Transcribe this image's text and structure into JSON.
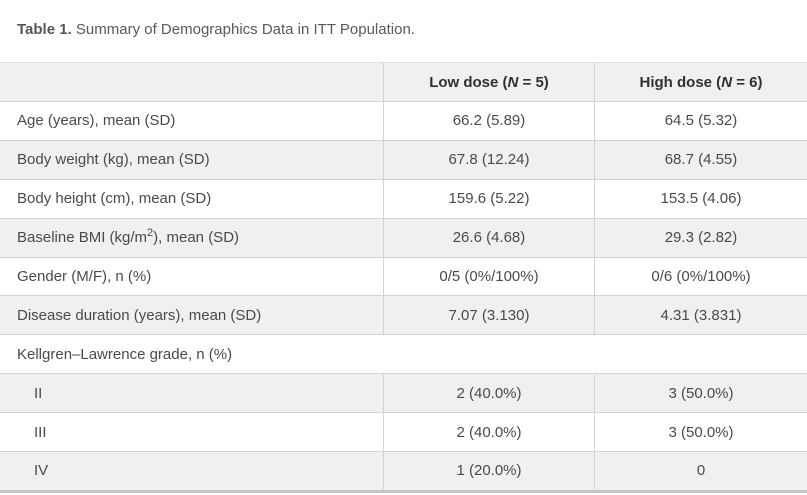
{
  "caption": {
    "label": "Table 1.",
    "text": " Summary of Demographics Data in ITT Population."
  },
  "table": {
    "header": {
      "empty": "",
      "low": {
        "pre": "Low dose (",
        "n": "N",
        "post": " = 5)"
      },
      "high": {
        "pre": "High dose (",
        "n": "N",
        "post": " = 6)"
      }
    },
    "rows": [
      {
        "label_pre": "Age (years), mean (SD)",
        "label_sup": "",
        "label_post": "",
        "low": "66.2 (5.89)",
        "high": "64.5 (5.32)"
      },
      {
        "label_pre": "Body weight (kg), mean (SD)",
        "label_sup": "",
        "label_post": "",
        "low": "67.8 (12.24)",
        "high": "68.7 (4.55)"
      },
      {
        "label_pre": "Body height (cm), mean (SD)",
        "label_sup": "",
        "label_post": "",
        "low": "159.6 (5.22)",
        "high": "153.5 (4.06)"
      },
      {
        "label_pre": "Baseline BMI (kg/m",
        "label_sup": "2",
        "label_post": "), mean (SD)",
        "low": "26.6 (4.68)",
        "high": "29.3 (2.82)"
      },
      {
        "label_pre": "Gender (M/F), n (%)",
        "label_sup": "",
        "label_post": "",
        "low": "0/5 (0%/100%)",
        "high": "0/6 (0%/100%)"
      },
      {
        "label_pre": "Disease duration (years), mean (SD)",
        "label_sup": "",
        "label_post": "",
        "low": "7.07 (3.130)",
        "high": "4.31 (3.831)"
      },
      {
        "label_pre": "Kellgren–Lawrence grade, n (%)",
        "label_sup": "",
        "label_post": ""
      },
      {
        "label_pre": "II",
        "label_sup": "",
        "label_post": "",
        "low": "2 (40.0%)",
        "high": "3 (50.0%)"
      },
      {
        "label_pre": "III",
        "label_sup": "",
        "label_post": "",
        "low": "2 (40.0%)",
        "high": "3 (50.0%)"
      },
      {
        "label_pre": "IV",
        "label_sup": "",
        "label_post": "",
        "low": "1 (20.0%)",
        "high": "0"
      }
    ]
  },
  "colors": {
    "stripe_bg": "#f0f0f0",
    "header_bg": "#f0f0f0",
    "border": "#d2d2d2",
    "bottom_bar": "#c6c6c6",
    "body_text": "#4a4a4a",
    "header_text": "#303030",
    "caption_text": "#595959"
  }
}
